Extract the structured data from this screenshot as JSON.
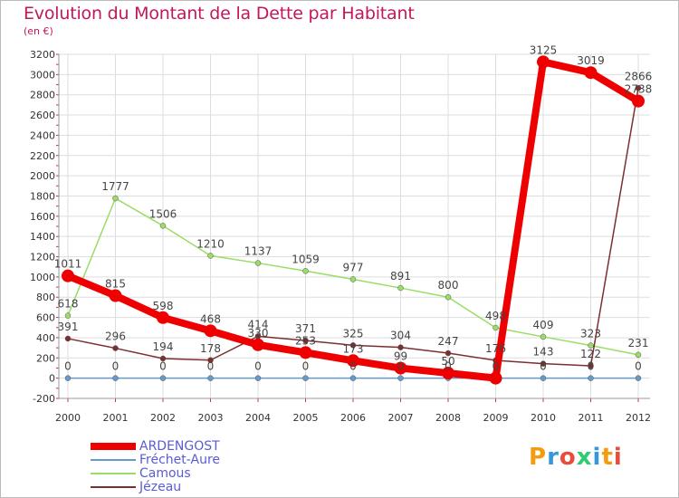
{
  "title": "Evolution du Montant de la Dette par Habitant",
  "subtitle": "(en €)",
  "logo": {
    "text": "Proxiti",
    "letters": [
      "P",
      "r",
      "o",
      "x",
      "i",
      "t",
      "i"
    ],
    "colors": [
      "#f39c12",
      "#3498db",
      "#e74c3c",
      "#2ecc71",
      "#3498db",
      "#f39c12",
      "#e74c3c"
    ]
  },
  "chart_data": {
    "type": "line",
    "title": "Evolution du Montant de la Dette par Habitant",
    "ylabel": "(en €)",
    "x": [
      "2000",
      "2001",
      "2002",
      "2003",
      "2004",
      "2005",
      "2006",
      "2007",
      "2008",
      "2009",
      "2010",
      "2011",
      "2012"
    ],
    "ylim": [
      -200,
      3200
    ],
    "yticks": [
      -200,
      0,
      200,
      400,
      600,
      800,
      1000,
      1200,
      1400,
      1600,
      1800,
      2000,
      2200,
      2400,
      2600,
      2800,
      3000,
      3200
    ],
    "grid": true,
    "legend_position": "bottom-left",
    "series": [
      {
        "name": "ARDENGOST",
        "color": "#ee0000",
        "values": [
          1011,
          815,
          598,
          468,
          330,
          253,
          173,
          99,
          50,
          0,
          3125,
          3019,
          2738
        ],
        "labels": [
          "1011",
          "815",
          "598",
          "468",
          "330",
          "253",
          "173",
          "99",
          "50",
          "0",
          "3125",
          "3019",
          "2738"
        ]
      },
      {
        "name": "Fréchet-Aure",
        "color": "#6699cc",
        "values": [
          0,
          0,
          0,
          0,
          0,
          0,
          0,
          0,
          0,
          0,
          0,
          0,
          0
        ],
        "labels": [
          "0",
          "0",
          "0",
          "0",
          "0",
          "0",
          "0",
          "0",
          "0",
          "0",
          "0",
          "0",
          "0"
        ]
      },
      {
        "name": "Camous",
        "color": "#99dd66",
        "values": [
          618,
          1777,
          1506,
          1210,
          1137,
          1059,
          977,
          891,
          800,
          498,
          409,
          323,
          231
        ],
        "labels": [
          "618",
          "1777",
          "1506",
          "1210",
          "1137",
          "1059",
          "977",
          "891",
          "800",
          "498",
          "409",
          "323",
          "231"
        ]
      },
      {
        "name": "Jézeau",
        "color": "#7b2f2f",
        "values": [
          391,
          296,
          194,
          178,
          414,
          371,
          325,
          304,
          247,
          176,
          143,
          122,
          2866
        ],
        "labels": [
          "391",
          "296",
          "194",
          "178",
          "414",
          "371",
          "325",
          "304",
          "247",
          "176",
          "143",
          "122",
          "2866"
        ]
      }
    ]
  }
}
